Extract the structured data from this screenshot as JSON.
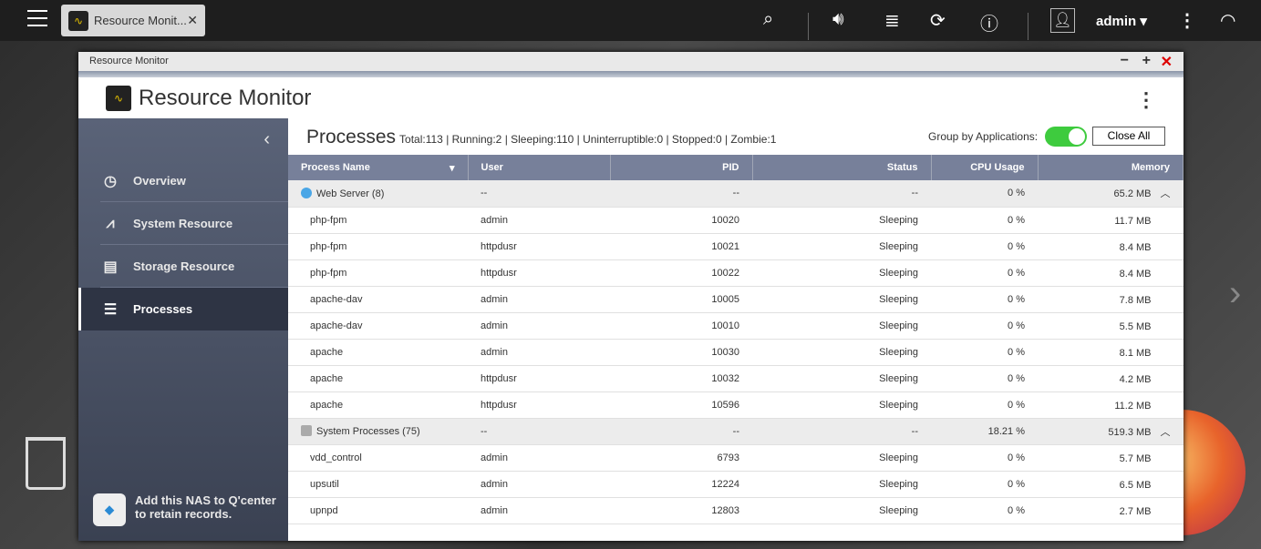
{
  "topbar": {
    "tab_title": "Resource Monit...",
    "user": "admin",
    "icons": [
      "menu-icon",
      "search-icon",
      "volume-icon",
      "event-stack-icon",
      "sync-icon",
      "info-icon",
      "user-icon",
      "more-icon",
      "dashboard-icon"
    ]
  },
  "window": {
    "title": "Resource Monitor",
    "app_title": "Resource Monitor"
  },
  "sidebar": {
    "items": [
      {
        "label": "Overview",
        "icon": "gauge-icon"
      },
      {
        "label": "System Resource",
        "icon": "chart-icon"
      },
      {
        "label": "Storage Resource",
        "icon": "storage-icon"
      },
      {
        "label": "Processes",
        "icon": "list-icon",
        "active": true
      }
    ],
    "qcenter": "Add this NAS to Q'center to retain records."
  },
  "main": {
    "title": "Processes",
    "stats": "Total:113 | Running:2 | Sleeping:110 | Uninterruptible:0 | Stopped:0 | Zombie:1",
    "group_label": "Group by Applications:",
    "group_on": true,
    "close_all": "Close All",
    "columns": [
      "Process Name",
      "User",
      "PID",
      "Status",
      "CPU Usage",
      "Memory"
    ],
    "rows": [
      {
        "group": true,
        "icon": "globe",
        "name": "Web Server (8)",
        "user": "--",
        "pid": "--",
        "status": "--",
        "cpu": "0 %",
        "mem": "65.2 MB"
      },
      {
        "name": "php-fpm",
        "user": "admin",
        "pid": "10020",
        "status": "Sleeping",
        "cpu": "0 %",
        "mem": "11.7 MB"
      },
      {
        "name": "php-fpm",
        "user": "httpdusr",
        "pid": "10021",
        "status": "Sleeping",
        "cpu": "0 %",
        "mem": "8.4 MB"
      },
      {
        "name": "php-fpm",
        "user": "httpdusr",
        "pid": "10022",
        "status": "Sleeping",
        "cpu": "0 %",
        "mem": "8.4 MB"
      },
      {
        "name": "apache-dav",
        "user": "admin",
        "pid": "10005",
        "status": "Sleeping",
        "cpu": "0 %",
        "mem": "7.8 MB"
      },
      {
        "name": "apache-dav",
        "user": "admin",
        "pid": "10010",
        "status": "Sleeping",
        "cpu": "0 %",
        "mem": "5.5 MB"
      },
      {
        "name": "apache",
        "user": "admin",
        "pid": "10030",
        "status": "Sleeping",
        "cpu": "0 %",
        "mem": "8.1 MB"
      },
      {
        "name": "apache",
        "user": "httpdusr",
        "pid": "10032",
        "status": "Sleeping",
        "cpu": "0 %",
        "mem": "4.2 MB"
      },
      {
        "name": "apache",
        "user": "httpdusr",
        "pid": "10596",
        "status": "Sleeping",
        "cpu": "0 %",
        "mem": "11.2 MB"
      },
      {
        "group": true,
        "icon": "gear",
        "name": "System Processes (75)",
        "user": "--",
        "pid": "--",
        "status": "--",
        "cpu": "18.21 %",
        "mem": "519.3 MB"
      },
      {
        "name": "vdd_control",
        "user": "admin",
        "pid": "6793",
        "status": "Sleeping",
        "cpu": "0 %",
        "mem": "5.7 MB"
      },
      {
        "name": "upsutil",
        "user": "admin",
        "pid": "12224",
        "status": "Sleeping",
        "cpu": "0 %",
        "mem": "6.5 MB"
      },
      {
        "name": "upnpd",
        "user": "admin",
        "pid": "12803",
        "status": "Sleeping",
        "cpu": "0 %",
        "mem": "2.7 MB"
      }
    ]
  }
}
